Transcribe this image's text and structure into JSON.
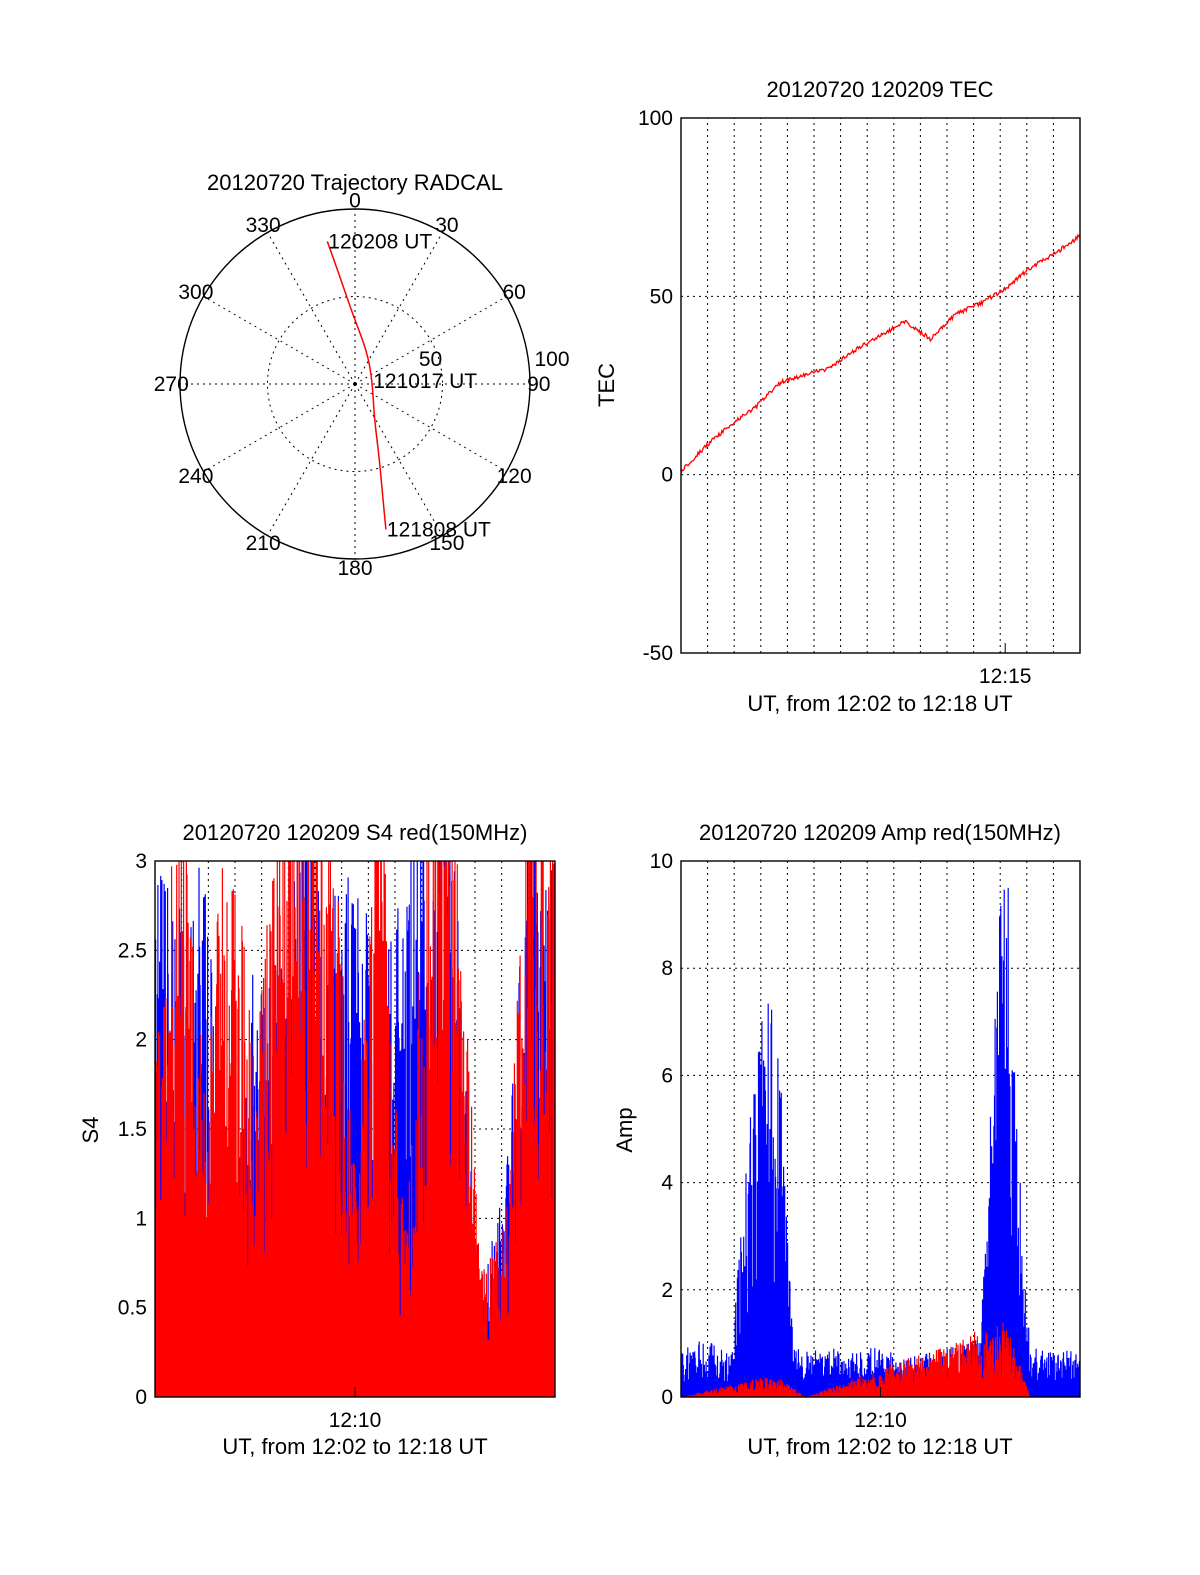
{
  "chart_data": [
    {
      "type": "scatter",
      "subtype": "polar-trajectory",
      "title": "20120720 Trajectory RADCAL",
      "azimuth_ticks": [
        0,
        30,
        60,
        90,
        120,
        150,
        180,
        210,
        240,
        270,
        300,
        330
      ],
      "radial_ticks": [
        50,
        100
      ],
      "rlim": [
        0,
        100
      ],
      "grid": true,
      "series": [
        {
          "color": "#ff0000",
          "points": [
            {
              "az": 349,
              "r": 83
            },
            {
              "az": 352,
              "r": 62
            },
            {
              "az": 358,
              "r": 40
            },
            {
              "az": 20,
              "r": 20
            },
            {
              "az": 80,
              "r": 10
            },
            {
              "az": 150,
              "r": 22
            },
            {
              "az": 162,
              "r": 45
            },
            {
              "az": 166,
              "r": 65
            },
            {
              "az": 168,
              "r": 85
            }
          ]
        }
      ],
      "annotations": [
        {
          "text": "120208 UT",
          "az": 349,
          "r": 83
        },
        {
          "text": "121017 UT",
          "az": 80,
          "r": 10
        },
        {
          "text": "121808 UT",
          "az": 168,
          "r": 85
        }
      ]
    },
    {
      "type": "line",
      "title": "20120720 120209 TEC",
      "ylabel": "TEC",
      "xlabel": "UT, from 12:02 to 12:18 UT",
      "xlim": [
        "12:02",
        "12:18"
      ],
      "ylim": [
        -50,
        100
      ],
      "yticks": [
        -50,
        0,
        50,
        100
      ],
      "xticks": [
        "12:15"
      ],
      "grid": true,
      "series": [
        {
          "color": "#ff0000",
          "x": [
            "12:02",
            "12:03",
            "12:04",
            "12:05",
            "12:06",
            "12:07",
            "12:08",
            "12:09",
            "12:10",
            "12:11",
            "12:12",
            "12:13",
            "12:14",
            "12:15",
            "12:16",
            "12:17",
            "12:18"
          ],
          "values": [
            1,
            8,
            14,
            19,
            26,
            28,
            30,
            35,
            39,
            43,
            38,
            45,
            48,
            52,
            58,
            62,
            67
          ]
        }
      ]
    },
    {
      "type": "line",
      "title": "20120720 120209 S4 red(150MHz)",
      "ylabel": "S4",
      "xlabel": "UT, from 12:02 to 12:18 UT",
      "xlim": [
        "12:02",
        "12:18"
      ],
      "ylim": [
        0,
        3
      ],
      "yticks": [
        0,
        0.5,
        1,
        1.5,
        2,
        2.5,
        3
      ],
      "xticks": [
        "12:10"
      ],
      "grid": true,
      "series": [
        {
          "color": "#0000ff",
          "x": [
            "12:02",
            "12:03",
            "12:04",
            "12:05",
            "12:06",
            "12:07",
            "12:08",
            "12:09",
            "12:10",
            "12:11",
            "12:12",
            "12:13",
            "12:14",
            "12:15",
            "12:16",
            "12:17",
            "12:18"
          ],
          "values": [
            2.5,
            2.3,
            2.6,
            0.4,
            2.2,
            2.0,
            2.8,
            2.4,
            2.5,
            2.0,
            2.6,
            2.8,
            2.5,
            0.5,
            1.0,
            2.7,
            2.8
          ]
        },
        {
          "color": "#ff0000",
          "x": [
            "12:02",
            "12:03",
            "12:04",
            "12:05",
            "12:06",
            "12:07",
            "12:08",
            "12:09",
            "12:10",
            "12:11",
            "12:12",
            "12:13",
            "12:14",
            "12:15",
            "12:16",
            "12:17",
            "12:18"
          ],
          "values": [
            1.5,
            3.0,
            1.5,
            3.0,
            1.5,
            3.0,
            3.0,
            3.0,
            1.2,
            3.0,
            0.7,
            3.0,
            3.0,
            0.6,
            0.8,
            3.0,
            3.0
          ]
        }
      ]
    },
    {
      "type": "line",
      "title": "20120720 120209 Amp red(150MHz)",
      "ylabel": "Amp",
      "xlabel": "UT, from 12:02 to 12:18 UT",
      "xlim": [
        "12:02",
        "12:18"
      ],
      "ylim": [
        0,
        10
      ],
      "yticks": [
        0,
        2,
        4,
        6,
        8,
        10
      ],
      "xticks": [
        "12:10"
      ],
      "grid": true,
      "series": [
        {
          "color": "#0000ff",
          "x": [
            "12:02",
            "12:03",
            "12:04",
            "12:05",
            "12:05.5",
            "12:06",
            "12:06.5",
            "12:07",
            "12:08",
            "12:09",
            "12:10",
            "12:11",
            "12:12",
            "12:13",
            "12:14",
            "12:15",
            "12:15.5",
            "12:16",
            "12:17",
            "12:18"
          ],
          "values": [
            0.8,
            0.9,
            0.7,
            5.5,
            6.5,
            5.0,
            0.8,
            0.7,
            0.8,
            0.7,
            0.8,
            0.6,
            0.7,
            0.8,
            0.9,
            9.8,
            4.0,
            0.8,
            0.7,
            0.8
          ]
        },
        {
          "color": "#ff0000",
          "x": [
            "12:02",
            "12:05",
            "12:06",
            "12:07",
            "12:15",
            "12:15.5",
            "12:16",
            "12:18"
          ],
          "values": [
            0,
            0.3,
            0.3,
            0,
            1.2,
            0.6,
            0,
            0
          ]
        }
      ]
    }
  ]
}
